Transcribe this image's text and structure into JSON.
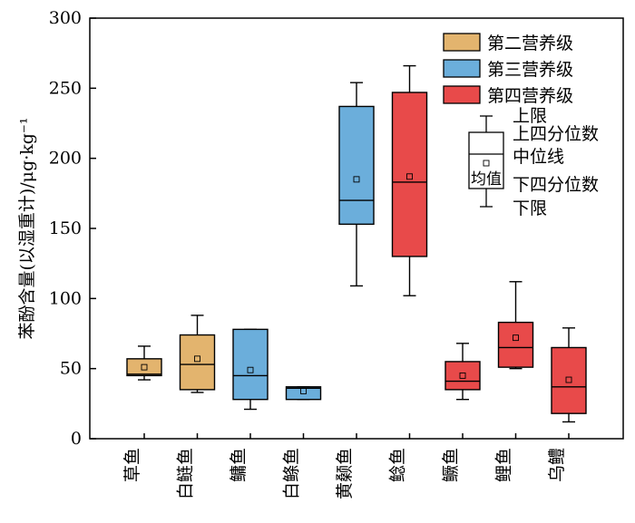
{
  "chart_data": {
    "type": "box",
    "ylabel": "苯酚含量(以湿重计)/μg·kg⁻¹",
    "ylim": [
      0,
      300
    ],
    "yticks": [
      0,
      50,
      100,
      150,
      200,
      250,
      300
    ],
    "grid": false,
    "legend_position": "top-right",
    "legend": [
      {
        "name": "第二营养级",
        "color": "#E3B46E"
      },
      {
        "name": "第三营养级",
        "color": "#6BAEDB"
      },
      {
        "name": "第四营养级",
        "color": "#E84A4A"
      }
    ],
    "key": {
      "upper_whisker": "上限",
      "q3": "上四分位数",
      "median": "中位线",
      "mean": "均值",
      "q1": "下四分位数",
      "lower_whisker": "下限"
    },
    "categories": [
      "草鱼",
      "白鲢鱼",
      "鳙鱼",
      "白鲦鱼",
      "黄颡鱼",
      "鲶鱼",
      "鳜鱼",
      "鲤鱼",
      "乌鳢"
    ],
    "boxes": [
      {
        "category": "草鱼",
        "group": 0,
        "min": 42,
        "q1": 45,
        "median": 46,
        "q3": 57,
        "max": 66,
        "mean": 51
      },
      {
        "category": "白鲢鱼",
        "group": 0,
        "min": 33,
        "q1": 35,
        "median": 53,
        "q3": 74,
        "max": 88,
        "mean": 57
      },
      {
        "category": "鳙鱼",
        "group": 1,
        "min": 21,
        "q1": 28,
        "median": 45,
        "q3": 78,
        "max": 78,
        "mean": 49
      },
      {
        "category": "白鲦鱼",
        "group": 1,
        "min": 28,
        "q1": 28,
        "median": 36,
        "q3": 37,
        "max": 37,
        "mean": 34
      },
      {
        "category": "黄颡鱼",
        "group": 1,
        "min": 109,
        "q1": 153,
        "median": 170,
        "q3": 237,
        "max": 254,
        "mean": 185
      },
      {
        "category": "鲶鱼",
        "group": 2,
        "min": 102,
        "q1": 130,
        "median": 183,
        "q3": 247,
        "max": 266,
        "mean": 187
      },
      {
        "category": "鳜鱼",
        "group": 2,
        "min": 28,
        "q1": 35,
        "median": 41,
        "q3": 55,
        "max": 68,
        "mean": 45
      },
      {
        "category": "鲤鱼",
        "group": 2,
        "min": 50,
        "q1": 51,
        "median": 65,
        "q3": 83,
        "max": 112,
        "mean": 72
      },
      {
        "category": "乌鳢",
        "group": 2,
        "min": 12,
        "q1": 18,
        "median": 37,
        "q3": 65,
        "max": 79,
        "mean": 42
      }
    ]
  }
}
